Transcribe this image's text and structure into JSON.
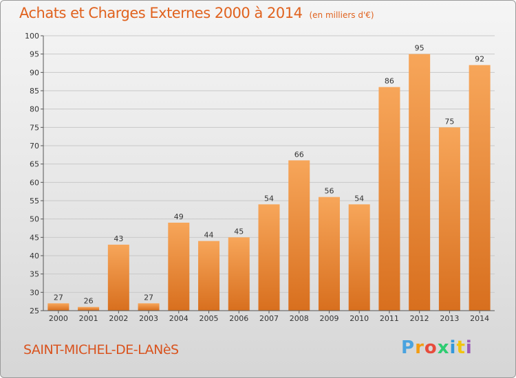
{
  "header": {
    "title": "Achats et Charges Externes 2000 à 2014",
    "unit": "(en milliers d'€)"
  },
  "footer": {
    "commune": "SAINT-MICHEL-DE-LANèS",
    "logo_letters": [
      "P",
      "r",
      "o",
      "x",
      "i",
      "t",
      "i"
    ],
    "logo_colors": [
      "#4aa3df",
      "#f39c12",
      "#e74c3c",
      "#2ecc71",
      "#3498db",
      "#f1c40f",
      "#9b59b6"
    ]
  },
  "colors": {
    "bar_light": "#f7a65a",
    "bar_dark": "#d86f1e",
    "text": "#333333",
    "grid": "#c8c8c8"
  },
  "chart_data": {
    "type": "bar",
    "categories": [
      "2000",
      "2001",
      "2002",
      "2003",
      "2004",
      "2005",
      "2006",
      "2007",
      "2008",
      "2009",
      "2010",
      "2011",
      "2012",
      "2013",
      "2014"
    ],
    "values": [
      27,
      26,
      43,
      27,
      49,
      44,
      45,
      54,
      66,
      56,
      54,
      86,
      95,
      75,
      92
    ],
    "title": "Achats et Charges Externes 2000 à 2014",
    "ylim": [
      25,
      100
    ],
    "yticks": [
      25,
      30,
      35,
      40,
      45,
      50,
      55,
      60,
      65,
      70,
      75,
      80,
      85,
      90,
      95,
      100
    ],
    "grid": true
  }
}
